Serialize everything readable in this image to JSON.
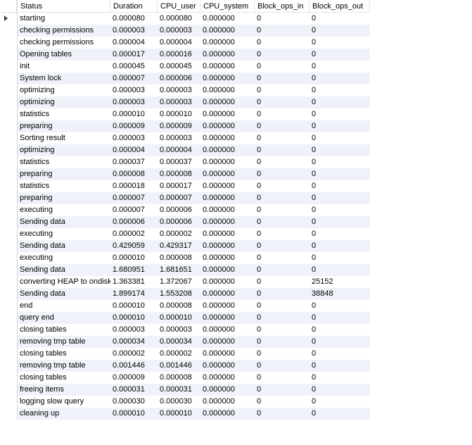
{
  "columns": [
    "Status",
    "Duration",
    "CPU_user",
    "CPU_system",
    "Block_ops_in",
    "Block_ops_out"
  ],
  "rows": [
    [
      "starting",
      "0.000080",
      "0.000080",
      "0.000000",
      "0",
      "0"
    ],
    [
      "checking permissions",
      "0.000003",
      "0.000003",
      "0.000000",
      "0",
      "0"
    ],
    [
      "checking permissions",
      "0.000004",
      "0.000004",
      "0.000000",
      "0",
      "0"
    ],
    [
      "Opening tables",
      "0.000017",
      "0.000016",
      "0.000000",
      "0",
      "0"
    ],
    [
      "init",
      "0.000045",
      "0.000045",
      "0.000000",
      "0",
      "0"
    ],
    [
      "System lock",
      "0.000007",
      "0.000006",
      "0.000000",
      "0",
      "0"
    ],
    [
      "optimizing",
      "0.000003",
      "0.000003",
      "0.000000",
      "0",
      "0"
    ],
    [
      "optimizing",
      "0.000003",
      "0.000003",
      "0.000000",
      "0",
      "0"
    ],
    [
      "statistics",
      "0.000010",
      "0.000010",
      "0.000000",
      "0",
      "0"
    ],
    [
      "preparing",
      "0.000009",
      "0.000009",
      "0.000000",
      "0",
      "0"
    ],
    [
      "Sorting result",
      "0.000003",
      "0.000003",
      "0.000000",
      "0",
      "0"
    ],
    [
      "optimizing",
      "0.000004",
      "0.000004",
      "0.000000",
      "0",
      "0"
    ],
    [
      "statistics",
      "0.000037",
      "0.000037",
      "0.000000",
      "0",
      "0"
    ],
    [
      "preparing",
      "0.000008",
      "0.000008",
      "0.000000",
      "0",
      "0"
    ],
    [
      "statistics",
      "0.000018",
      "0.000017",
      "0.000000",
      "0",
      "0"
    ],
    [
      "preparing",
      "0.000007",
      "0.000007",
      "0.000000",
      "0",
      "0"
    ],
    [
      "executing",
      "0.000007",
      "0.000006",
      "0.000000",
      "0",
      "0"
    ],
    [
      "Sending data",
      "0.000006",
      "0.000006",
      "0.000000",
      "0",
      "0"
    ],
    [
      "executing",
      "0.000002",
      "0.000002",
      "0.000000",
      "0",
      "0"
    ],
    [
      "Sending data",
      "0.429059",
      "0.429317",
      "0.000000",
      "0",
      "0"
    ],
    [
      "executing",
      "0.000010",
      "0.000008",
      "0.000000",
      "0",
      "0"
    ],
    [
      "Sending data",
      "1.680951",
      "1.681651",
      "0.000000",
      "0",
      "0"
    ],
    [
      "converting HEAP to ondisk",
      "1.363381",
      "1.372067",
      "0.000000",
      "0",
      "25152"
    ],
    [
      "Sending data",
      "1.899174",
      "1.553208",
      "0.000000",
      "0",
      "38848"
    ],
    [
      "end",
      "0.000010",
      "0.000008",
      "0.000000",
      "0",
      "0"
    ],
    [
      "query end",
      "0.000010",
      "0.000010",
      "0.000000",
      "0",
      "0"
    ],
    [
      "closing tables",
      "0.000003",
      "0.000003",
      "0.000000",
      "0",
      "0"
    ],
    [
      "removing tmp table",
      "0.000034",
      "0.000034",
      "0.000000",
      "0",
      "0"
    ],
    [
      "closing tables",
      "0.000002",
      "0.000002",
      "0.000000",
      "0",
      "0"
    ],
    [
      "removing tmp table",
      "0.001446",
      "0.001446",
      "0.000000",
      "0",
      "0"
    ],
    [
      "closing tables",
      "0.000009",
      "0.000008",
      "0.000000",
      "0",
      "0"
    ],
    [
      "freeing items",
      "0.000031",
      "0.000031",
      "0.000000",
      "0",
      "0"
    ],
    [
      "logging slow query",
      "0.000030",
      "0.000030",
      "0.000000",
      "0",
      "0"
    ],
    [
      "cleaning up",
      "0.000010",
      "0.000010",
      "0.000000",
      "0",
      "0"
    ]
  ],
  "current_row_marker_icon": "triangle-right-icon"
}
